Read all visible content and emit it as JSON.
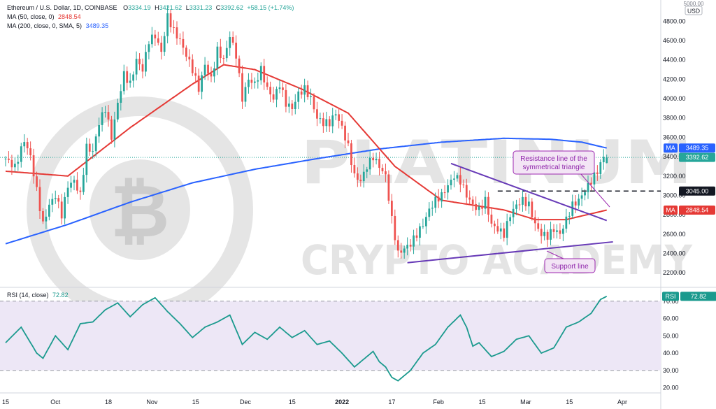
{
  "header": {
    "title": "Ethereum / U.S. Dollar, 1D, COINBASE",
    "ohlc": [
      {
        "k": "O",
        "v": "3334.19"
      },
      {
        "k": "H",
        "v": "3421.62"
      },
      {
        "k": "L",
        "v": "3331.23"
      },
      {
        "k": "C",
        "v": "3392.62"
      }
    ],
    "change": "+58.15 (+1.74%)",
    "ma50_label": "MA (50, close, 0)",
    "ma50_value": "2848.54",
    "ma200_label": "MA (200, close, 0, SMA, 5)",
    "ma200_value": "3489.35",
    "rsi_label": "RSI (14, close)",
    "rsi_value": "72.82",
    "currency_top": "5000.00",
    "currency": "USD"
  },
  "colors": {
    "up": "#26a69a",
    "down": "#ef5350",
    "ma50": "#e53935",
    "ma200": "#2962ff",
    "trendline": "#673ab7",
    "rsi": "#1b9a8e",
    "rsi_band": "#ede7f6",
    "label_dark": "#131722"
  },
  "watermark": {
    "line1": "PLATINUM",
    "line2": "CRYPTO ACADEMY"
  },
  "annotations": {
    "resistance": [
      "Resistance line of the",
      "symmetrical triangle"
    ],
    "support": "Support line"
  },
  "badges": {
    "ma200": {
      "tag": "MA",
      "value": "3489.35"
    },
    "last": {
      "value": "3392.62"
    },
    "level": {
      "value": "3045.00"
    },
    "ma50": {
      "tag": "MA",
      "value": "2848.54"
    },
    "rsi": {
      "tag": "RSI",
      "value": "72.82"
    }
  },
  "chart_data": {
    "type": "candlestick",
    "title": "Ethereum / U.S. Dollar, 1D, COINBASE",
    "x_ticks": [
      "15",
      "Oct",
      "18",
      "Nov",
      "15",
      "Dec",
      "15",
      "2022",
      "17",
      "Feb",
      "15",
      "Mar",
      "15",
      "Apr"
    ],
    "x_tick_days": [
      0,
      16,
      33,
      47,
      61,
      77,
      92,
      108,
      124,
      139,
      153,
      167,
      181,
      198
    ],
    "price_ticks": [
      2200,
      2400,
      2600,
      2800,
      3000,
      3200,
      3400,
      3600,
      3800,
      4000,
      4200,
      4400,
      4600,
      4800
    ],
    "price_range": [
      2050,
      4990
    ],
    "rsi_ticks": [
      20,
      30,
      40,
      50,
      60,
      70
    ],
    "rsi_range": [
      17,
      78
    ],
    "rsi_bands": [
      30,
      70
    ],
    "last_day": 193,
    "horizontal_level": 3045.0,
    "resistance_line": [
      [
        143,
        3330
      ],
      [
        193,
        2740
      ]
    ],
    "support_line": [
      [
        129,
        2305
      ],
      [
        195,
        2520
      ]
    ],
    "anchors": [
      [
        0,
        3380
      ],
      [
        3,
        3290
      ],
      [
        6,
        3570
      ],
      [
        8,
        3400
      ],
      [
        10,
        3050
      ],
      [
        12,
        2700
      ],
      [
        14,
        2900
      ],
      [
        16,
        3000
      ],
      [
        18,
        2800
      ],
      [
        20,
        3100
      ],
      [
        22,
        3150
      ],
      [
        24,
        3000
      ],
      [
        26,
        3500
      ],
      [
        28,
        3450
      ],
      [
        30,
        3750
      ],
      [
        32,
        3900
      ],
      [
        34,
        3600
      ],
      [
        36,
        3950
      ],
      [
        38,
        4250
      ],
      [
        40,
        4150
      ],
      [
        42,
        4400
      ],
      [
        44,
        4300
      ],
      [
        46,
        4600
      ],
      [
        48,
        4650
      ],
      [
        50,
        4480
      ],
      [
        52,
        4850
      ],
      [
        54,
        4700
      ],
      [
        56,
        4600
      ],
      [
        58,
        4450
      ],
      [
        60,
        4300
      ],
      [
        62,
        4100
      ],
      [
        64,
        4350
      ],
      [
        66,
        4200
      ],
      [
        68,
        4500
      ],
      [
        70,
        4400
      ],
      [
        72,
        4650
      ],
      [
        74,
        4450
      ],
      [
        76,
        4000
      ],
      [
        78,
        4200
      ],
      [
        80,
        4150
      ],
      [
        82,
        4300
      ],
      [
        84,
        4100
      ],
      [
        86,
        4000
      ],
      [
        88,
        4150
      ],
      [
        90,
        3950
      ],
      [
        92,
        3900
      ],
      [
        94,
        4050
      ],
      [
        96,
        4100
      ],
      [
        98,
        4000
      ],
      [
        100,
        3800
      ],
      [
        102,
        3750
      ],
      [
        104,
        3750
      ],
      [
        106,
        3850
      ],
      [
        108,
        3700
      ],
      [
        110,
        3500
      ],
      [
        112,
        3200
      ],
      [
        114,
        3150
      ],
      [
        116,
        3300
      ],
      [
        118,
        3400
      ],
      [
        120,
        3300
      ],
      [
        122,
        3200
      ],
      [
        124,
        2750
      ],
      [
        126,
        2400
      ],
      [
        128,
        2450
      ],
      [
        130,
        2500
      ],
      [
        132,
        2600
      ],
      [
        134,
        2700
      ],
      [
        136,
        2850
      ],
      [
        138,
        2950
      ],
      [
        140,
        3000
      ],
      [
        142,
        3100
      ],
      [
        144,
        3200
      ],
      [
        146,
        3150
      ],
      [
        148,
        3000
      ],
      [
        150,
        2900
      ],
      [
        152,
        2850
      ],
      [
        154,
        2950
      ],
      [
        156,
        2700
      ],
      [
        158,
        2650
      ],
      [
        160,
        2600
      ],
      [
        162,
        2800
      ],
      [
        164,
        2900
      ],
      [
        166,
        2950
      ],
      [
        168,
        2900
      ],
      [
        170,
        2700
      ],
      [
        172,
        2600
      ],
      [
        174,
        2580
      ],
      [
        176,
        2650
      ],
      [
        178,
        2600
      ],
      [
        180,
        2750
      ],
      [
        182,
        2900
      ],
      [
        184,
        2950
      ],
      [
        186,
        3050
      ],
      [
        188,
        3150
      ],
      [
        190,
        3250
      ],
      [
        192,
        3400
      ],
      [
        193,
        3392.62
      ]
    ],
    "ma50": [
      [
        0,
        3250
      ],
      [
        20,
        3200
      ],
      [
        40,
        3700
      ],
      [
        60,
        4150
      ],
      [
        70,
        4350
      ],
      [
        80,
        4300
      ],
      [
        95,
        4100
      ],
      [
        110,
        3850
      ],
      [
        125,
        3300
      ],
      [
        140,
        2950
      ],
      [
        160,
        2850
      ],
      [
        170,
        2750
      ],
      [
        180,
        2750
      ],
      [
        193,
        2848.54
      ]
    ],
    "ma200": [
      [
        0,
        2500
      ],
      [
        20,
        2700
      ],
      [
        40,
        2930
      ],
      [
        60,
        3130
      ],
      [
        80,
        3270
      ],
      [
        100,
        3380
      ],
      [
        120,
        3480
      ],
      [
        140,
        3550
      ],
      [
        160,
        3590
      ],
      [
        175,
        3580
      ],
      [
        185,
        3550
      ],
      [
        193,
        3489.35
      ]
    ],
    "rsi": [
      [
        0,
        46
      ],
      [
        5,
        55
      ],
      [
        10,
        40
      ],
      [
        12,
        37
      ],
      [
        16,
        50
      ],
      [
        20,
        42
      ],
      [
        24,
        57
      ],
      [
        28,
        58
      ],
      [
        32,
        65
      ],
      [
        36,
        69
      ],
      [
        40,
        61
      ],
      [
        44,
        68
      ],
      [
        48,
        72
      ],
      [
        52,
        64
      ],
      [
        56,
        57
      ],
      [
        60,
        49
      ],
      [
        64,
        55
      ],
      [
        68,
        58
      ],
      [
        72,
        62
      ],
      [
        76,
        45
      ],
      [
        80,
        52
      ],
      [
        84,
        48
      ],
      [
        88,
        55
      ],
      [
        92,
        49
      ],
      [
        96,
        53
      ],
      [
        100,
        45
      ],
      [
        104,
        47
      ],
      [
        108,
        40
      ],
      [
        112,
        32
      ],
      [
        116,
        38
      ],
      [
        118,
        41
      ],
      [
        120,
        35
      ],
      [
        122,
        32
      ],
      [
        124,
        26
      ],
      [
        126,
        24
      ],
      [
        130,
        30
      ],
      [
        134,
        40
      ],
      [
        138,
        45
      ],
      [
        142,
        55
      ],
      [
        146,
        62
      ],
      [
        148,
        55
      ],
      [
        150,
        44
      ],
      [
        152,
        46
      ],
      [
        156,
        38
      ],
      [
        160,
        41
      ],
      [
        164,
        48
      ],
      [
        168,
        50
      ],
      [
        172,
        40
      ],
      [
        176,
        43
      ],
      [
        180,
        55
      ],
      [
        184,
        58
      ],
      [
        188,
        63
      ],
      [
        191,
        71
      ],
      [
        193,
        72.82
      ]
    ]
  }
}
